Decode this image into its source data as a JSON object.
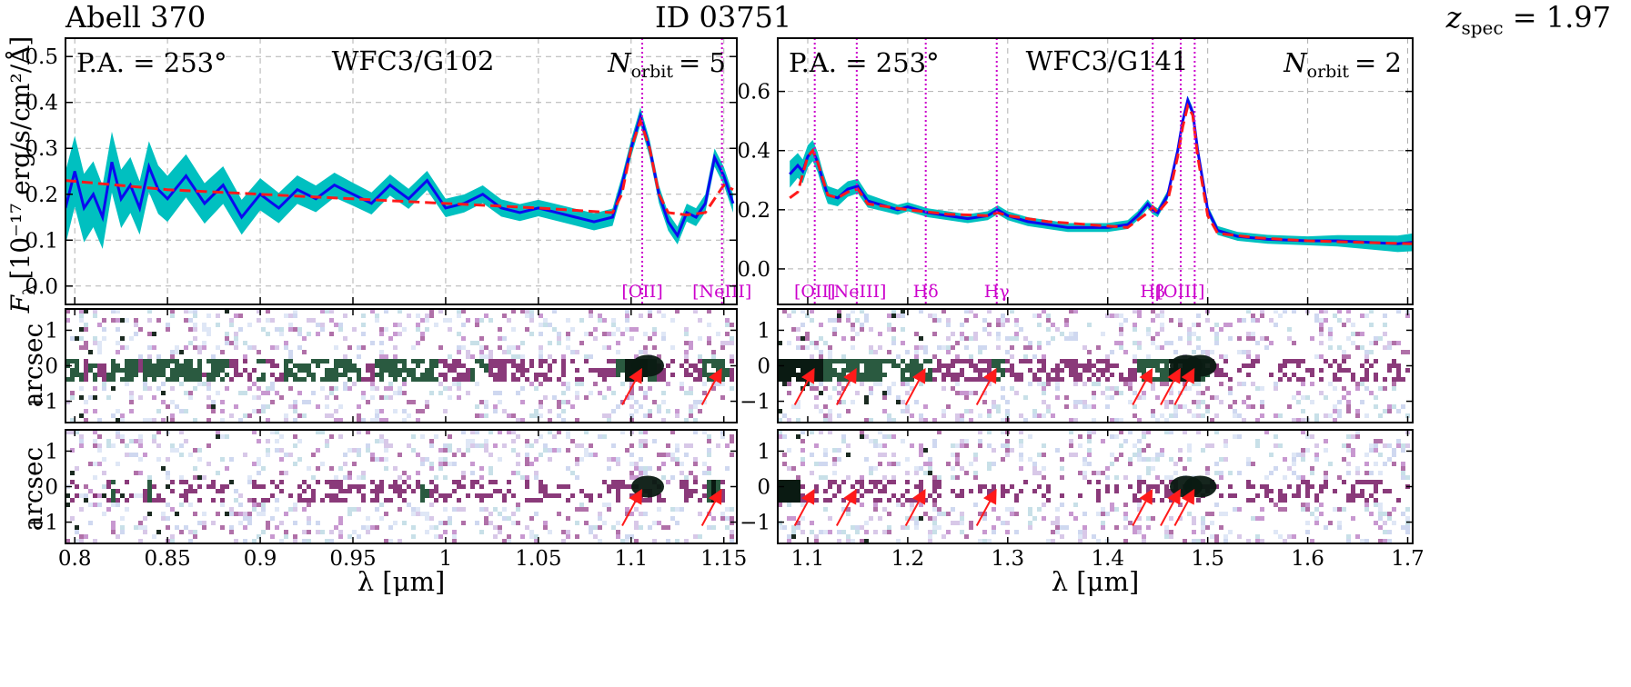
{
  "header": {
    "cluster": "Abell 370",
    "object_id": "ID 03751",
    "redshift_symbol": "z",
    "redshift_sub": "spec",
    "redshift_value": "= 1.97"
  },
  "y_axis": {
    "flux_label": "F",
    "flux_sub": "λ",
    "flux_units": "[10⁻¹⁷ erg/s/cm²/Å]",
    "arcsec_label": "arcsec"
  },
  "colors": {
    "model": "#ff1a1a",
    "flux": "#0a0af0",
    "error_band": "#00c0c0",
    "line_marker": "#cc00cc",
    "arrow": "#ff1a1a",
    "grid": "#b0b0b0"
  },
  "chart_data": [
    {
      "type": "line",
      "panel": "left",
      "title": "WFC3/G102",
      "pa_label": "P.A. = 253°",
      "orbit_symbol": "N",
      "orbit_sub": "orbit",
      "orbit_value": "= 5",
      "xlabel": "λ [μm]",
      "ylabel": "F_λ [10^-17 erg/s/cm²/Å]",
      "xlim": [
        0.795,
        1.157
      ],
      "ylim": [
        -0.04,
        0.54
      ],
      "xticks": [
        0.8,
        0.85,
        0.9,
        0.95,
        1.0,
        1.05,
        1.1,
        1.15
      ],
      "xtick_labels": [
        "0.8",
        "0.85",
        "0.9",
        "0.95",
        "1",
        "1.05",
        "1.1",
        "1.15"
      ],
      "yticks": [
        0.0,
        0.1,
        0.2,
        0.3,
        0.4,
        0.5
      ],
      "ytick_labels": [
        "0.0",
        "0.1",
        "0.2",
        "0.3",
        "0.4",
        "0.5"
      ],
      "grid": true,
      "emission_lines": [
        {
          "label": "[OII]",
          "wavelength": 1.106
        },
        {
          "label": "[NeIII]",
          "wavelength": 1.149
        }
      ],
      "series": [
        {
          "name": "observed flux",
          "x": [
            0.795,
            0.8,
            0.805,
            0.81,
            0.815,
            0.82,
            0.825,
            0.83,
            0.835,
            0.84,
            0.845,
            0.85,
            0.86,
            0.87,
            0.88,
            0.89,
            0.9,
            0.91,
            0.92,
            0.93,
            0.94,
            0.95,
            0.96,
            0.97,
            0.98,
            0.99,
            1.0,
            1.01,
            1.02,
            1.03,
            1.04,
            1.05,
            1.06,
            1.07,
            1.08,
            1.09,
            1.095,
            1.1,
            1.105,
            1.11,
            1.115,
            1.12,
            1.125,
            1.13,
            1.135,
            1.14,
            1.145,
            1.15,
            1.155
          ],
          "y": [
            0.17,
            0.25,
            0.17,
            0.2,
            0.15,
            0.27,
            0.19,
            0.22,
            0.17,
            0.26,
            0.21,
            0.19,
            0.24,
            0.18,
            0.22,
            0.15,
            0.2,
            0.17,
            0.21,
            0.19,
            0.22,
            0.2,
            0.18,
            0.22,
            0.19,
            0.23,
            0.17,
            0.18,
            0.2,
            0.17,
            0.16,
            0.17,
            0.16,
            0.15,
            0.14,
            0.15,
            0.22,
            0.3,
            0.37,
            0.3,
            0.2,
            0.14,
            0.11,
            0.16,
            0.15,
            0.18,
            0.28,
            0.24,
            0.18
          ]
        },
        {
          "name": "model",
          "x": [
            0.795,
            0.85,
            0.9,
            0.95,
            1.0,
            1.05,
            1.09,
            1.095,
            1.1,
            1.105,
            1.11,
            1.115,
            1.12,
            1.13,
            1.14,
            1.145,
            1.15,
            1.155
          ],
          "y": [
            0.23,
            0.21,
            0.2,
            0.19,
            0.18,
            0.17,
            0.16,
            0.2,
            0.3,
            0.36,
            0.3,
            0.2,
            0.16,
            0.155,
            0.16,
            0.19,
            0.22,
            0.21
          ]
        }
      ],
      "error_halfwidth": {
        "x": [
          0.795,
          0.85,
          0.9,
          0.95,
          1.0,
          1.05,
          1.157
        ],
        "y": [
          0.08,
          0.05,
          0.035,
          0.025,
          0.02,
          0.018,
          0.02
        ]
      },
      "stamp_yticks": [
        1,
        0,
        -1
      ],
      "stamp_yticks_labels": [
        "1",
        "0",
        "−1"
      ],
      "stamp_ylim": [
        -1.6,
        1.6
      ],
      "arrows_at": [
        1.106,
        1.149
      ]
    },
    {
      "type": "line",
      "panel": "right",
      "title": "WFC3/G141",
      "pa_label": "P.A. = 253°",
      "orbit_symbol": "N",
      "orbit_sub": "orbit",
      "orbit_value": "= 2",
      "xlabel": "λ [μm]",
      "ylabel": "F_λ [10^-17 erg/s/cm²/Å]",
      "xlim": [
        1.07,
        1.705
      ],
      "ylim": [
        -0.12,
        0.78
      ],
      "xticks": [
        1.1,
        1.2,
        1.3,
        1.4,
        1.5,
        1.6,
        1.7
      ],
      "xtick_labels": [
        "1.1",
        "1.2",
        "1.3",
        "1.4",
        "1.5",
        "1.6",
        "1.7"
      ],
      "yticks": [
        0.0,
        0.2,
        0.4,
        0.6
      ],
      "ytick_labels": [
        "0.0",
        "0.2",
        "0.4",
        "0.6"
      ],
      "grid": true,
      "emission_lines": [
        {
          "label": "[OII]",
          "wavelength": 1.107
        },
        {
          "label": "[NeIII]",
          "wavelength": 1.149
        },
        {
          "label": "Hδ",
          "wavelength": 1.218
        },
        {
          "label": "Hγ",
          "wavelength": 1.289
        },
        {
          "label": "Hβ",
          "wavelength": 1.445
        },
        {
          "label": "[OIII]",
          "wavelength": 1.473
        },
        {
          "label": "",
          "wavelength": 1.487
        }
      ],
      "series": [
        {
          "name": "observed flux",
          "x": [
            1.082,
            1.09,
            1.095,
            1.1,
            1.105,
            1.11,
            1.115,
            1.12,
            1.13,
            1.14,
            1.15,
            1.16,
            1.17,
            1.18,
            1.19,
            1.2,
            1.22,
            1.24,
            1.26,
            1.28,
            1.29,
            1.3,
            1.32,
            1.34,
            1.36,
            1.38,
            1.4,
            1.42,
            1.43,
            1.44,
            1.445,
            1.45,
            1.46,
            1.47,
            1.475,
            1.48,
            1.485,
            1.49,
            1.5,
            1.51,
            1.53,
            1.56,
            1.6,
            1.63,
            1.66,
            1.69,
            1.705
          ],
          "y": [
            0.32,
            0.35,
            0.33,
            0.38,
            0.4,
            0.36,
            0.3,
            0.25,
            0.24,
            0.27,
            0.28,
            0.23,
            0.22,
            0.21,
            0.2,
            0.21,
            0.19,
            0.18,
            0.17,
            0.18,
            0.2,
            0.18,
            0.16,
            0.15,
            0.14,
            0.14,
            0.14,
            0.15,
            0.18,
            0.22,
            0.2,
            0.19,
            0.25,
            0.4,
            0.5,
            0.57,
            0.53,
            0.4,
            0.2,
            0.13,
            0.11,
            0.1,
            0.095,
            0.095,
            0.09,
            0.085,
            0.09
          ]
        },
        {
          "name": "model",
          "x": [
            1.082,
            1.09,
            1.1,
            1.105,
            1.11,
            1.12,
            1.13,
            1.14,
            1.15,
            1.16,
            1.2,
            1.24,
            1.28,
            1.29,
            1.3,
            1.34,
            1.38,
            1.42,
            1.44,
            1.445,
            1.45,
            1.46,
            1.47,
            1.475,
            1.48,
            1.485,
            1.49,
            1.5,
            1.51,
            1.55,
            1.6,
            1.65,
            1.705
          ],
          "y": [
            0.24,
            0.26,
            0.38,
            0.4,
            0.36,
            0.25,
            0.24,
            0.26,
            0.27,
            0.22,
            0.2,
            0.185,
            0.18,
            0.19,
            0.18,
            0.16,
            0.15,
            0.14,
            0.19,
            0.21,
            0.19,
            0.23,
            0.38,
            0.48,
            0.55,
            0.52,
            0.38,
            0.18,
            0.12,
            0.105,
            0.095,
            0.09,
            0.085
          ]
        }
      ],
      "error_halfwidth": {
        "x": [
          1.07,
          1.12,
          1.2,
          1.5,
          1.6,
          1.705
        ],
        "y": [
          0.05,
          0.03,
          0.015,
          0.015,
          0.015,
          0.03
        ]
      },
      "stamp_yticks": [
        1,
        0,
        -1
      ],
      "stamp_yticks_labels": [
        "1",
        "0",
        "−1"
      ],
      "stamp_ylim": [
        -1.6,
        1.6
      ],
      "arrows_at": [
        1.107,
        1.149,
        1.218,
        1.289,
        1.445,
        1.473,
        1.487
      ]
    }
  ]
}
